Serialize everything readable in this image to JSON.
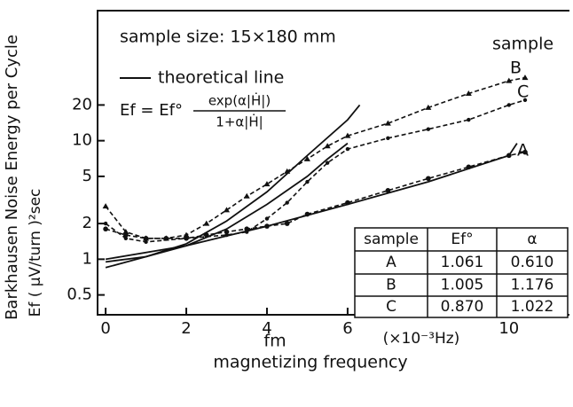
{
  "chart_data": {
    "type": "line",
    "log_y": true,
    "y_label": "Barkhausen Noise  Energy per Cycle",
    "y_unit": "Ef ( μV/turn )²sec",
    "x_symbol": "fm",
    "x_unit": "(×10⁻³Hz)",
    "x_label": "magnetizing  frequency",
    "annotations": [
      "sample size: 15×180 mm",
      "theoretical line",
      "sample"
    ],
    "formula": {
      "lhs": "Ef = Ef°",
      "numerator": "exp(α|Ḣ|)",
      "denominator": "1+α|Ḣ|"
    },
    "xlim": [
      -0.2,
      11.5
    ],
    "ylim": [
      0.34,
      125
    ],
    "xticks": [
      0,
      2,
      4,
      6,
      10
    ],
    "yticks": [
      0.5,
      1,
      2,
      5,
      10,
      20
    ],
    "series": [
      {
        "name": "B",
        "color": "#111",
        "marker": "triangle",
        "x": [
          0,
          0.5,
          1,
          1.5,
          2,
          2.5,
          3,
          3.5,
          4,
          4.5,
          5,
          5.5,
          6,
          7,
          8,
          9,
          10,
          10.4
        ],
        "values": [
          2.8,
          1.7,
          1.5,
          1.5,
          1.6,
          2.0,
          2.6,
          3.4,
          4.3,
          5.5,
          7,
          9,
          11,
          14,
          19,
          25,
          32,
          34
        ]
      },
      {
        "name": "C",
        "color": "#111",
        "marker": "dot",
        "x": [
          0,
          0.5,
          1,
          2,
          3,
          3.5,
          4,
          4.5,
          5,
          5.5,
          6,
          7,
          8,
          9,
          10,
          10.4
        ],
        "values": [
          2.0,
          1.5,
          1.4,
          1.5,
          1.6,
          1.7,
          2.2,
          3,
          4.5,
          6.5,
          8.5,
          10.5,
          12.5,
          15,
          20,
          22
        ]
      },
      {
        "name": "A",
        "color": "#111",
        "marker": "circle",
        "x": [
          0,
          0.5,
          1,
          1.5,
          2,
          2.5,
          3,
          3.5,
          4,
          4.5,
          5,
          6,
          7,
          8,
          9,
          10,
          10.4
        ],
        "values": [
          1.8,
          1.6,
          1.5,
          1.5,
          1.5,
          1.6,
          1.7,
          1.8,
          1.9,
          2.0,
          2.4,
          3.0,
          3.8,
          4.8,
          6,
          7.5,
          8
        ]
      }
    ],
    "theory_lines": [
      {
        "x": [
          0,
          1,
          2,
          3,
          4,
          5,
          6,
          6.3
        ],
        "values": [
          0.95,
          1.05,
          1.35,
          2.1,
          3.7,
          7.5,
          15,
          20
        ]
      },
      {
        "x": [
          0,
          2,
          3,
          4,
          5,
          5.5,
          6
        ],
        "values": [
          0.85,
          1.3,
          1.8,
          2.9,
          5,
          7,
          9.5
        ]
      },
      {
        "x": [
          0,
          2,
          4,
          6,
          8,
          10,
          10.2
        ],
        "values": [
          1.0,
          1.3,
          1.9,
          2.9,
          4.5,
          7.5,
          9.5
        ]
      }
    ],
    "table": {
      "header": [
        "sample",
        "Ef°",
        "α"
      ],
      "rows": [
        [
          "A",
          "1.061",
          "0.610"
        ],
        [
          "B",
          "1.005",
          "1.176"
        ],
        [
          "C",
          "0.870",
          "1.022"
        ]
      ]
    }
  }
}
